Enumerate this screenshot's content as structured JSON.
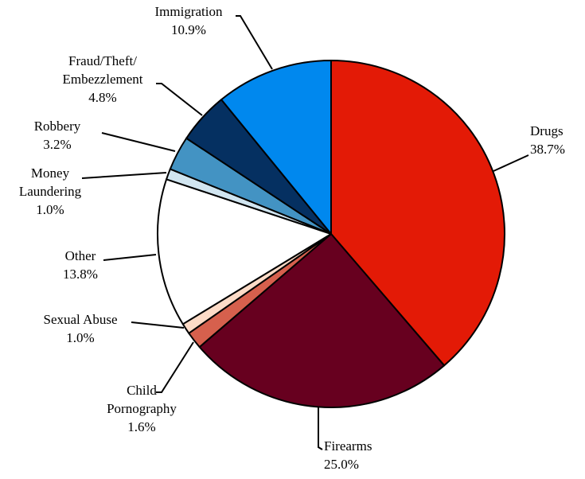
{
  "chart_data": {
    "type": "pie",
    "title": "",
    "start_angle_deg": 0,
    "direction": "clockwise",
    "slices": [
      {
        "label": "Drugs",
        "value": 38.7,
        "value_label": "38.7%",
        "color": "#e31a06"
      },
      {
        "label": "Firearms",
        "value": 25.0,
        "value_label": "25.0%",
        "color": "#67001f"
      },
      {
        "label": "Child Pornography",
        "value": 1.6,
        "value_label": "1.6%",
        "color": "#d6604d"
      },
      {
        "label": "Sexual Abuse",
        "value": 1.0,
        "value_label": "1.0%",
        "color": "#fddbc7"
      },
      {
        "label": "Other",
        "value": 13.8,
        "value_label": "13.8%",
        "color": "#ffffff"
      },
      {
        "label": "Money Laundering",
        "value": 1.0,
        "value_label": "1.0%",
        "color": "#d1e5f0"
      },
      {
        "label": "Robbery",
        "value": 3.2,
        "value_label": "3.2%",
        "color": "#4393c3"
      },
      {
        "label": "Fraud/Theft/Embezzlement",
        "value": 4.8,
        "value_label": "4.8%",
        "color": "#053061"
      },
      {
        "label": "Immigration",
        "value": 10.9,
        "value_label": "10.9%",
        "color": "#0088ee"
      }
    ]
  }
}
